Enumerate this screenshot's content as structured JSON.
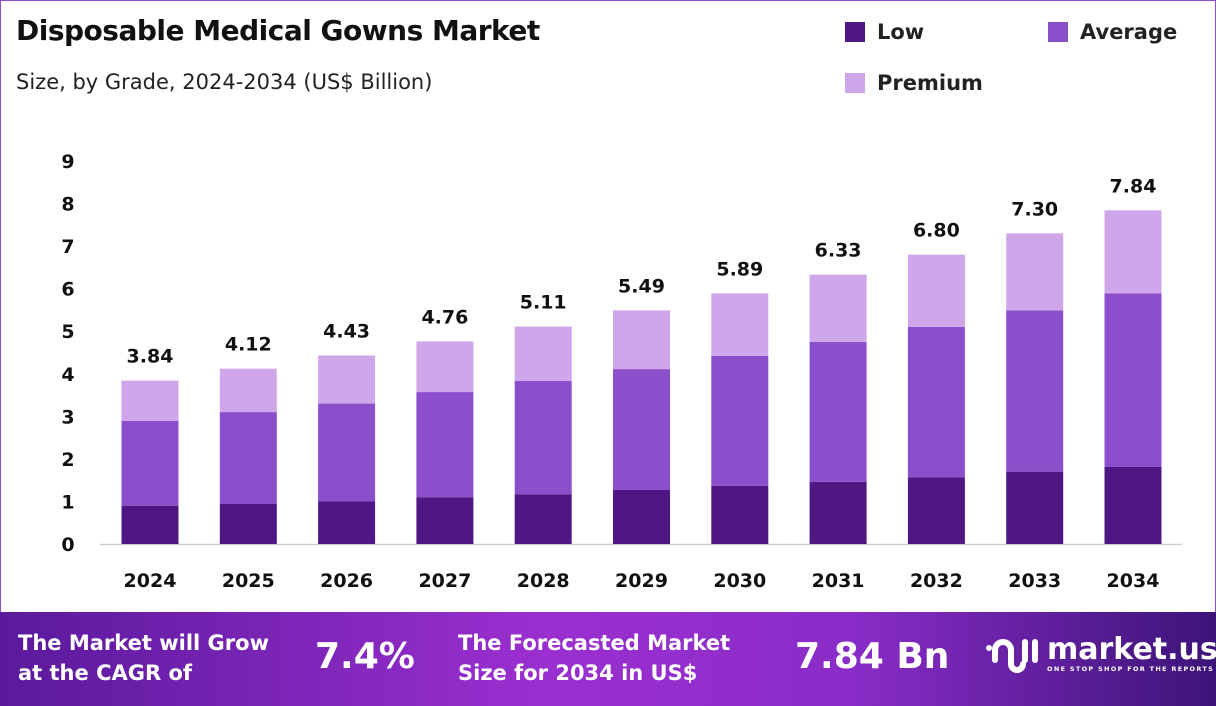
{
  "chart_data": {
    "type": "bar",
    "stacked": true,
    "title": "Disposable Medical Gowns Market",
    "subtitle": "Size, by Grade, 2024-2034 (US$ Billion)",
    "categories": [
      "2024",
      "2025",
      "2026",
      "2027",
      "2028",
      "2029",
      "2030",
      "2031",
      "2032",
      "2033",
      "2034"
    ],
    "series": [
      {
        "name": "Low",
        "color": "#4f1783",
        "values": [
          0.9,
          0.94,
          1.0,
          1.1,
          1.17,
          1.27,
          1.37,
          1.46,
          1.57,
          1.7,
          1.81
        ]
      },
      {
        "name": "Average",
        "color": "#8b4fcb",
        "values": [
          1.99,
          2.16,
          2.3,
          2.47,
          2.66,
          2.84,
          3.05,
          3.29,
          3.53,
          3.79,
          4.08
        ]
      },
      {
        "name": "Premium",
        "color": "#d0a6ea",
        "values": [
          0.95,
          1.02,
          1.13,
          1.19,
          1.28,
          1.38,
          1.47,
          1.58,
          1.7,
          1.81,
          1.95
        ]
      }
    ],
    "totals": [
      "3.84",
      "4.12",
      "4.43",
      "4.76",
      "5.11",
      "5.49",
      "5.89",
      "6.33",
      "6.80",
      "7.30",
      "7.84"
    ],
    "yticks": [
      "0",
      "1",
      "2",
      "3",
      "4",
      "5",
      "6",
      "7",
      "8",
      "9"
    ],
    "ylim": [
      0,
      9
    ],
    "grid": false,
    "legend_position": "top-right"
  },
  "footer": {
    "cagr_label": "The Market will Grow at the CAGR of",
    "cagr_label_line1": "The Market will Grow",
    "cagr_label_line2": "at the CAGR of",
    "cagr_value": "7.4%",
    "forecast_label_line1": "The Forecasted Market",
    "forecast_label_line2": "Size for 2034 in US$",
    "forecast_value": "7.84 Bn",
    "logo_name": "market.us",
    "logo_tagline": "ONE STOP SHOP FOR THE REPORTS"
  }
}
